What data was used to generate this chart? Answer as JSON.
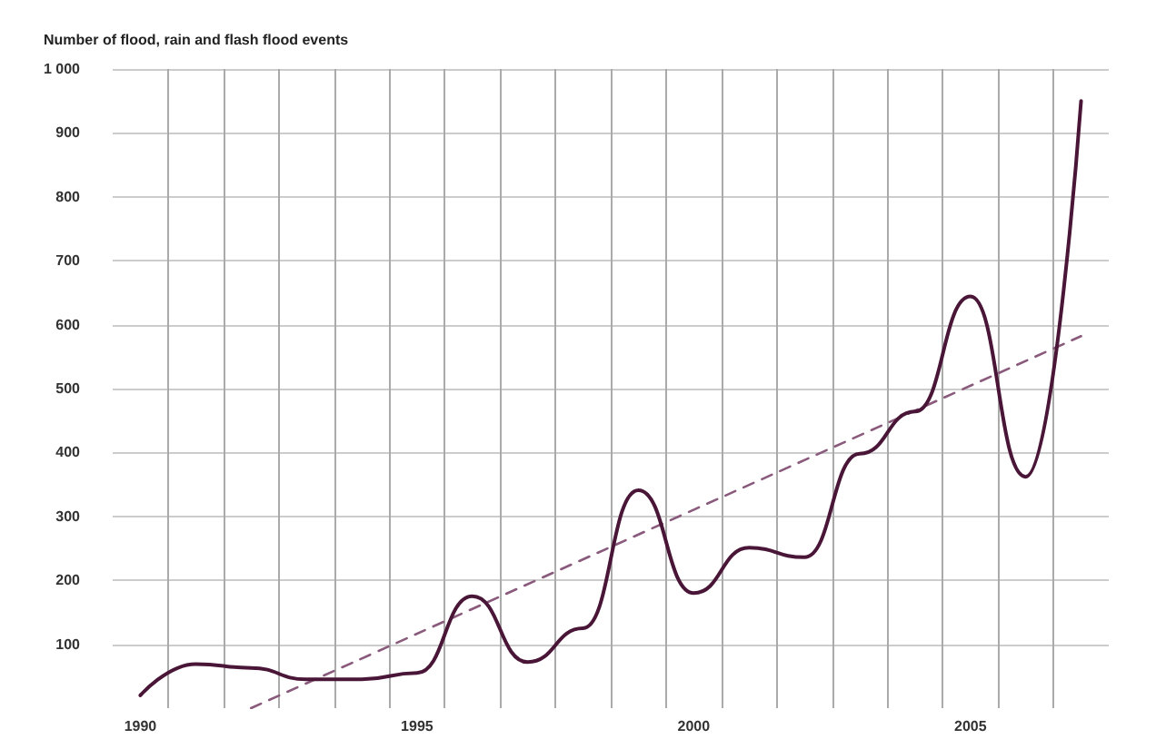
{
  "chart_data": {
    "type": "line",
    "ylabel": "Number of flood, rain and flash flood events",
    "x": [
      1990,
      1991,
      1992,
      1993,
      1994,
      1995,
      1996,
      1997,
      1998,
      1999,
      2000,
      2001,
      2002,
      2003,
      2004,
      2005,
      2006,
      2007
    ],
    "series": [
      {
        "color": "#4a1638",
        "values": [
          20,
          69,
          63,
          45,
          45,
          55,
          175,
          72,
          125,
          341,
          180,
          251,
          236,
          398,
          464,
          644,
          362,
          950
        ]
      },
      {
        "type": "line",
        "color": "#8a5a7c",
        "line_style": "dashed",
        "x": [
          1992,
          2007
        ],
        "values": [
          0,
          582
        ]
      }
    ],
    "xlim": [
      1989.5,
      2007.5
    ],
    "xticks": [
      1990,
      {
        "value": 1990.5,
        "label": null
      },
      {
        "value": 1991.5,
        "label": null
      },
      {
        "value": 1992.5,
        "label": null
      },
      {
        "value": 1993.5,
        "label": null
      },
      {
        "value": 1994.5,
        "label": null
      },
      1995,
      {
        "value": 1995.5,
        "label": null
      },
      {
        "value": 1996.5,
        "label": null
      },
      {
        "value": 1997.5,
        "label": null
      },
      {
        "value": 1998.5,
        "label": null
      },
      {
        "value": 1999.5,
        "label": null
      },
      2000,
      {
        "value": 2000.5,
        "label": null
      },
      {
        "value": 2001.5,
        "label": null
      },
      {
        "value": 2002.5,
        "label": null
      },
      {
        "value": 2003.5,
        "label": null
      },
      {
        "value": 2004.5,
        "label": null
      },
      2005,
      {
        "value": 2005.5,
        "label": null
      },
      {
        "value": 2006.5,
        "label": null
      }
    ],
    "ylim": [
      0,
      1000
    ],
    "yticks": [
      100,
      200,
      300,
      400,
      500,
      600,
      700,
      800,
      900,
      {
        "value": 1000,
        "label": "1 000"
      }
    ],
    "grid": true,
    "line_style": "solid",
    "marker": "none"
  }
}
